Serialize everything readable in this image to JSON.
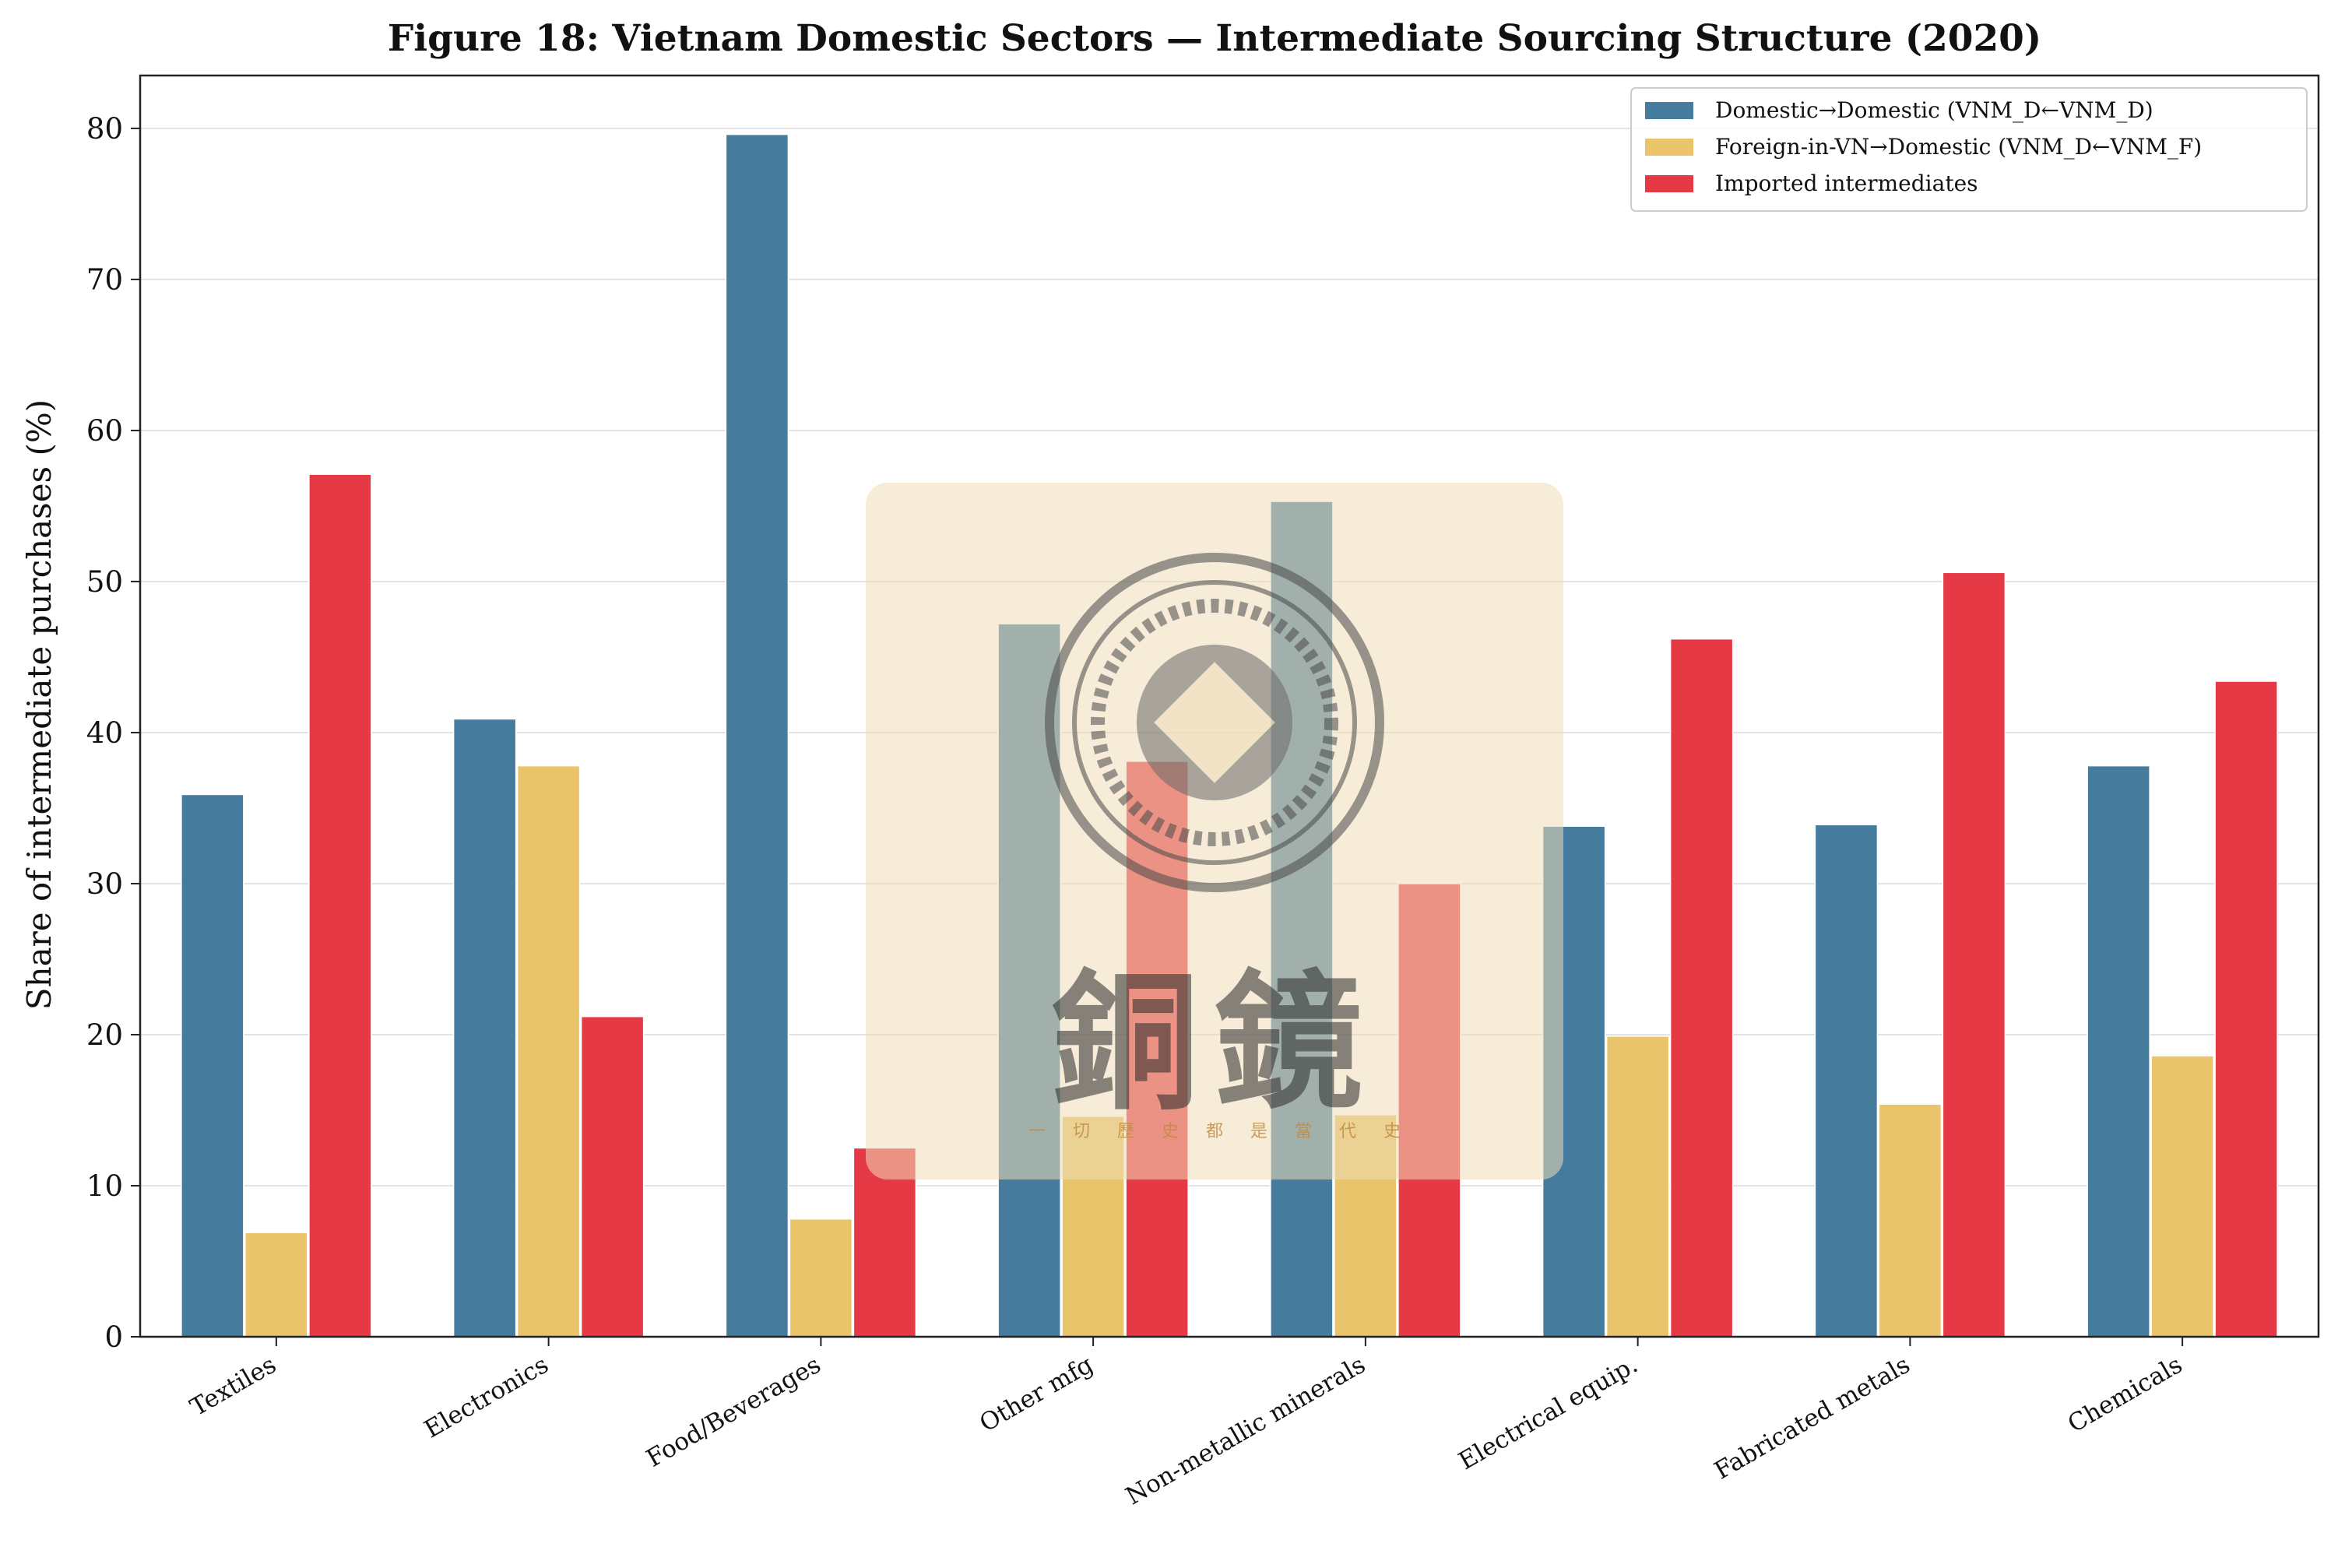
{
  "chart_data": {
    "type": "bar",
    "title": "Figure 18: Vietnam Domestic Sectors — Intermediate Sourcing Structure (2020)",
    "xlabel": "",
    "ylabel": "Share of intermediate purchases (%)",
    "ylim": [
      0,
      83.5
    ],
    "yticks": [
      0,
      10,
      20,
      30,
      40,
      50,
      60,
      70,
      80
    ],
    "grid": "horizontal",
    "legend_position": "top-right",
    "categories": [
      "Textiles",
      "Electronics",
      "Food/Beverages",
      "Other mfg",
      "Non-metallic minerals",
      "Electrical equip.",
      "Fabricated metals",
      "Chemicals"
    ],
    "series": [
      {
        "name": "Domestic→Domestic (VNM_D←VNM_D)",
        "color": "#457b9d",
        "values": [
          35.9,
          40.9,
          79.6,
          47.2,
          55.3,
          33.8,
          33.9,
          37.8
        ]
      },
      {
        "name": "Foreign-in-VN→Domestic (VNM_D←VNM_F)",
        "color": "#e9c46a",
        "values": [
          6.9,
          37.8,
          7.8,
          14.6,
          14.7,
          19.9,
          15.4,
          18.6
        ]
      },
      {
        "name": "Imported intermediates",
        "color": "#e63946",
        "values": [
          57.1,
          21.2,
          12.5,
          38.1,
          30.0,
          46.2,
          50.6,
          43.4
        ]
      }
    ]
  },
  "watermark": {
    "logo_text": "銅鏡",
    "tagline": [
      "一",
      "切",
      "歷",
      "史",
      "都",
      "是",
      "當",
      "代",
      "史"
    ]
  }
}
